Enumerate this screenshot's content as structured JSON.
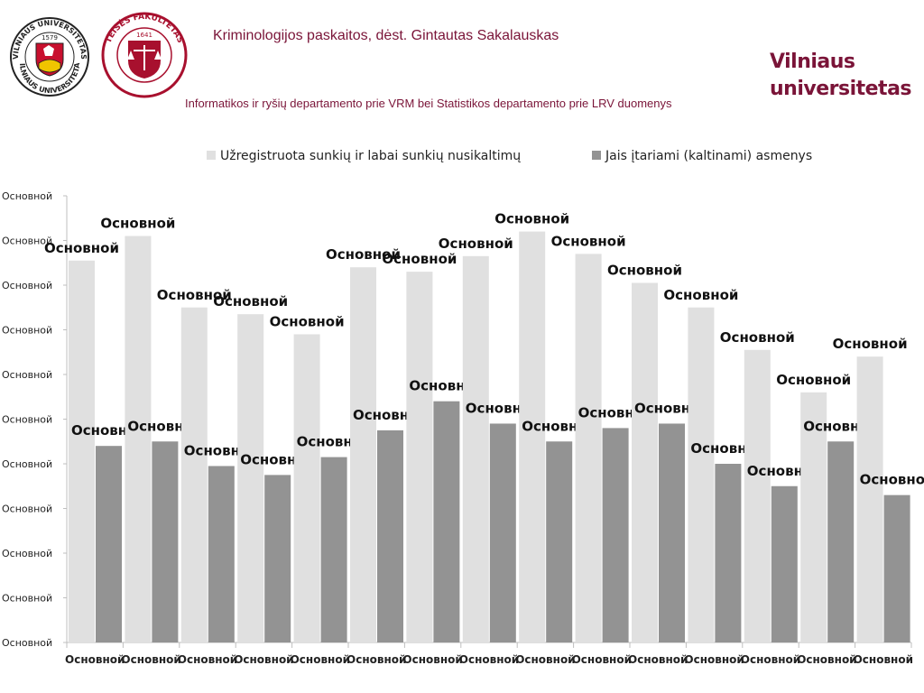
{
  "header": {
    "title": "Kriminologijos paskaitos, dėst. Gintautas Sakalauskas",
    "subtitle": "Informatikos ir ryšių departamento prie VRM bei Statistikos departamento prie LRV duomenys",
    "brand_line1": "Vilniaus",
    "brand_line2": "universitetas",
    "logo_left_text": "VILNIAUS UNIVERSITETAS",
    "logo_left_year": "1579",
    "logo_right_text": "TEISĖS FAKULTETAS",
    "logo_right_year": "1641",
    "brand_color": "#7a1438"
  },
  "chart_data": {
    "type": "bar",
    "categories": [
      "Основной",
      "Основной",
      "Основной",
      "Основной",
      "Основной",
      "Основной",
      "Основной",
      "Основной",
      "Основной",
      "Основной",
      "Основной",
      "Основной",
      "Основной",
      "Основной",
      "Основной"
    ],
    "series": [
      {
        "name": "Užregistruota sunkių ir labai sunkių nusikaltimų",
        "color": "#e0e0e0",
        "values": [
          8.55,
          9.1,
          7.5,
          7.35,
          6.9,
          8.4,
          8.3,
          8.65,
          9.2,
          8.7,
          8.05,
          7.5,
          6.55,
          5.6,
          6.4
        ],
        "labels": [
          "Основной",
          "Основной",
          "Основной",
          "Основной",
          "Основной",
          "Основной",
          "Основной",
          "Основной",
          "Основной",
          "Основной",
          "Основной",
          "Основной",
          "Основной",
          "Основной",
          "Основной"
        ]
      },
      {
        "name": "Jais įtariami (kaltinami) asmenys",
        "color": "#939393",
        "values": [
          4.4,
          4.5,
          3.95,
          3.75,
          4.15,
          4.75,
          5.4,
          4.9,
          4.5,
          4.8,
          4.9,
          4.0,
          3.5,
          4.5,
          3.3
        ],
        "labels": [
          "Основной",
          "Основной",
          "Основной",
          "Основной",
          "Основной",
          "Основной",
          "Основной",
          "Основной",
          "Основной",
          "Основной",
          "Основной",
          "Основной",
          "Основной",
          "Основной",
          "Основной"
        ]
      }
    ],
    "y_tick_labels": [
      "Основной",
      "Основной",
      "Основной",
      "Основной",
      "Основной",
      "Основной",
      "Основной",
      "Основной",
      "Основной",
      "Основной",
      "Основной"
    ],
    "ylim": [
      0,
      10
    ],
    "grid": false,
    "legend_position": "top"
  }
}
